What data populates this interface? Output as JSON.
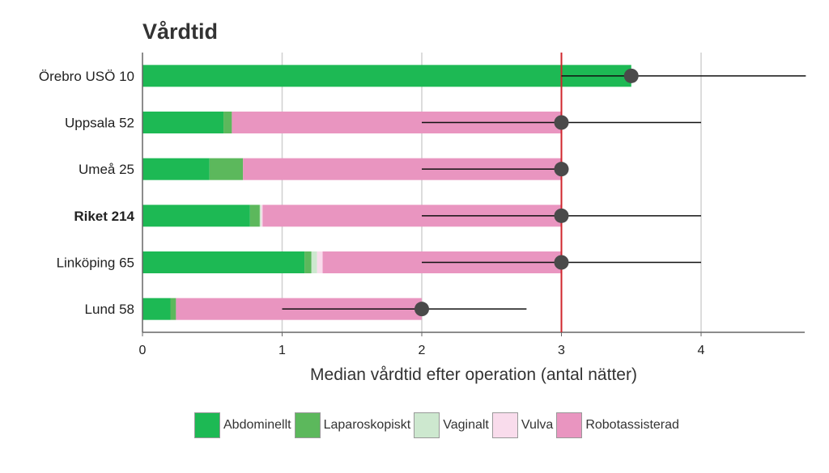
{
  "chart_data": {
    "type": "bar",
    "title": "Vårdtid",
    "xlabel": "Median vårdtid efter operation (antal nätter)",
    "xlim": [
      0,
      4.75
    ],
    "xticks": [
      0,
      1,
      2,
      3,
      4
    ],
    "reference_line": 3,
    "reference_color": "#d0262d",
    "categories": [
      {
        "label": "Örebro USÖ 10",
        "bold": false
      },
      {
        "label": "Uppsala 52",
        "bold": false
      },
      {
        "label": "Umeå 25",
        "bold": false
      },
      {
        "label": "Riket 214",
        "bold": true
      },
      {
        "label": "Linköping 65",
        "bold": false
      },
      {
        "label": "Lund 58",
        "bold": false
      }
    ],
    "series": [
      {
        "name": "Abdominellt",
        "color": "#1db954",
        "values": [
          3.5,
          0.58,
          0.48,
          0.77,
          1.16,
          0.2
        ]
      },
      {
        "name": "Laparoskopiskt",
        "color": "#5cb85c",
        "values": [
          0,
          0.06,
          0.24,
          0.07,
          0.05,
          0.04
        ]
      },
      {
        "name": "Vaginalt",
        "color": "#cde8cf",
        "values": [
          0,
          0,
          0,
          0.01,
          0.04,
          0
        ]
      },
      {
        "name": "Vulva",
        "color": "#f9dcec",
        "values": [
          0,
          0,
          0,
          0.01,
          0.04,
          0
        ]
      },
      {
        "name": "Robotassisterad",
        "color": "#e995c0",
        "values": [
          0,
          2.36,
          2.28,
          2.14,
          1.71,
          1.76
        ]
      }
    ],
    "median": [
      3.5,
      3,
      3,
      3,
      3,
      2
    ],
    "ci_low": [
      3,
      2,
      2,
      2,
      2,
      1
    ],
    "ci_high": [
      4.75,
      4,
      3,
      4,
      4,
      2.75
    ]
  }
}
